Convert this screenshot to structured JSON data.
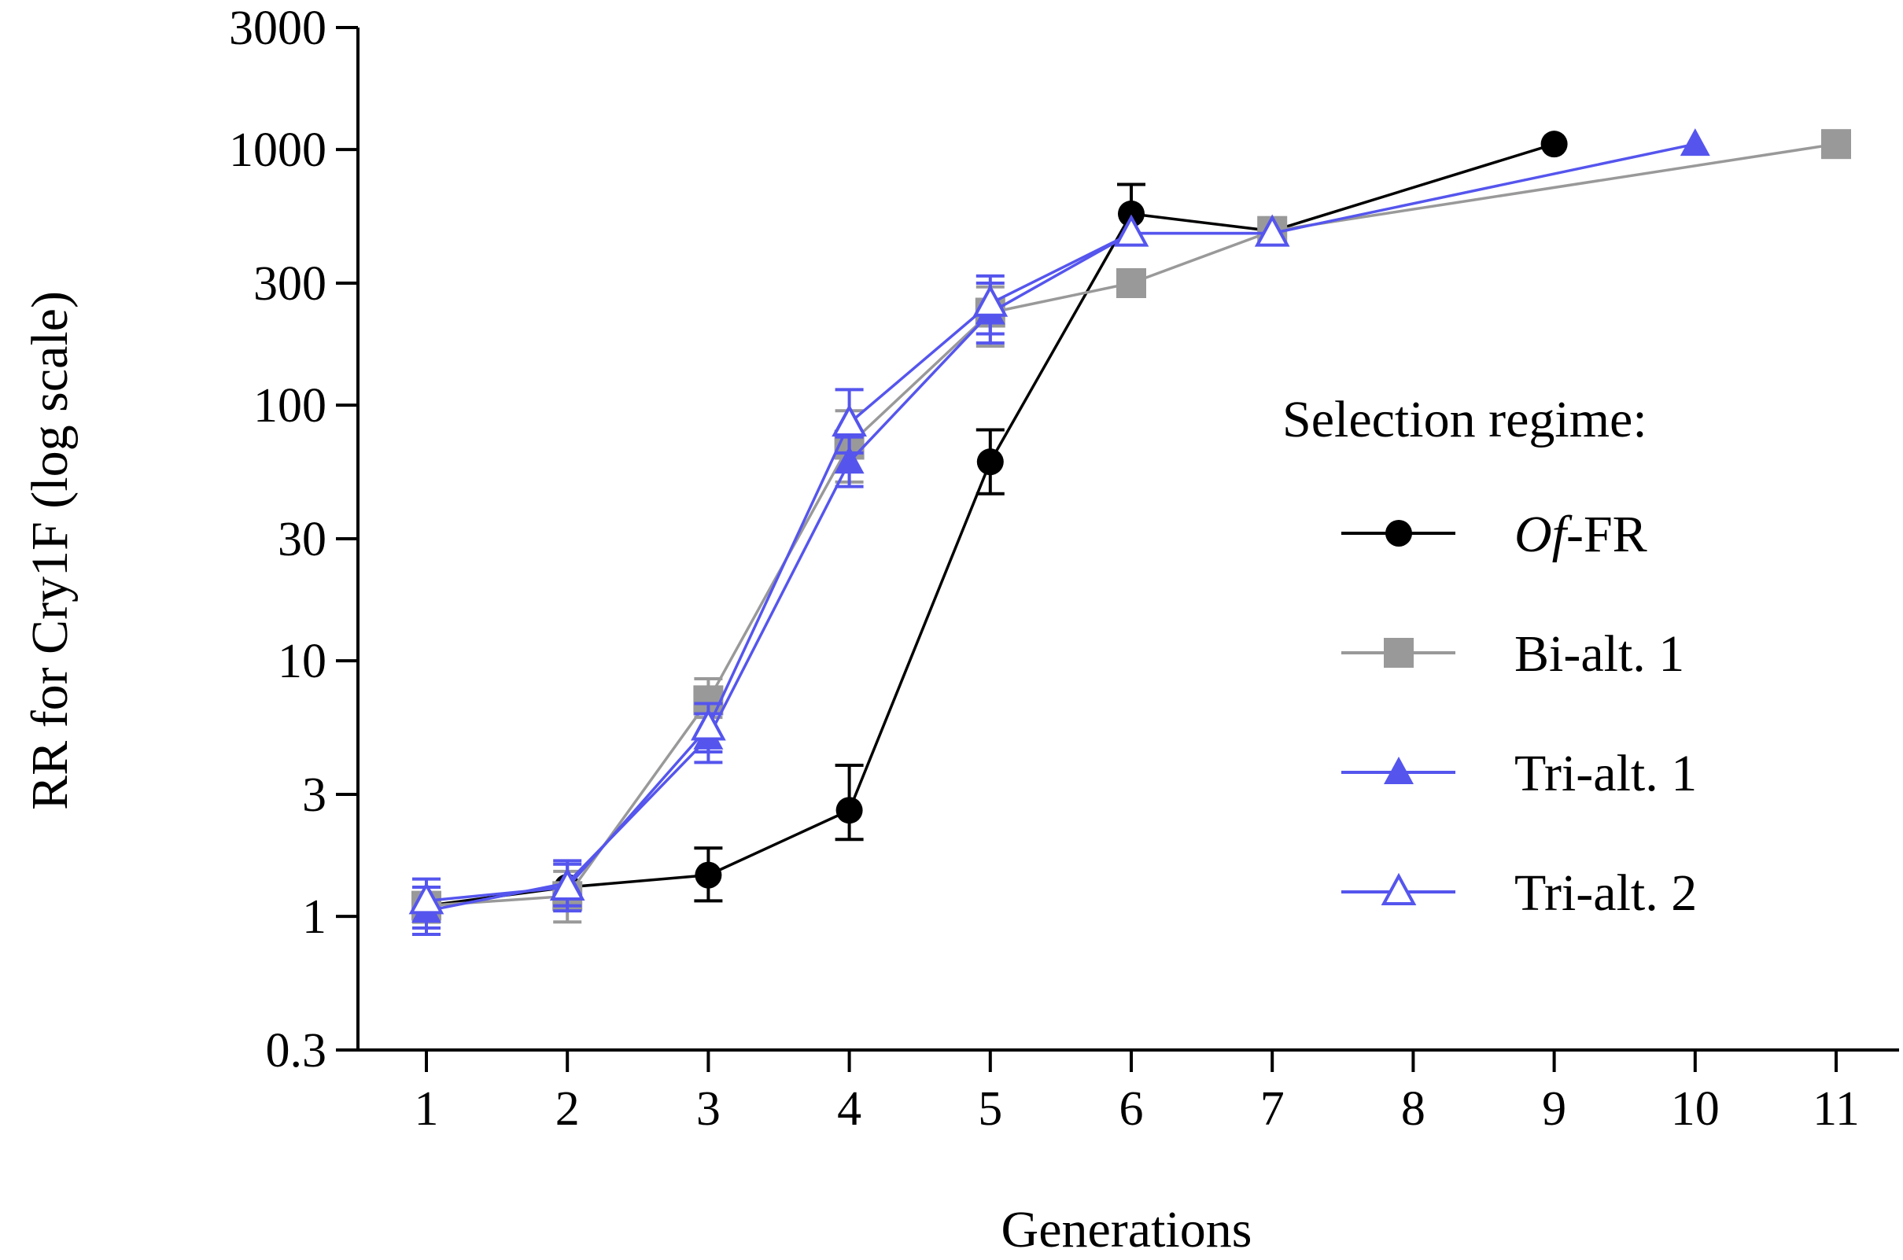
{
  "chart_data": {
    "type": "line",
    "title": "",
    "xlabel": "Generations",
    "ylabel": "RR for Cry1F (log scale)",
    "yscale": "log",
    "ylim": [
      0.3,
      3000
    ],
    "yticks": [
      0.3,
      1,
      3,
      10,
      30,
      100,
      300,
      1000,
      3000
    ],
    "ytick_labels": [
      "0.3",
      "1",
      "3",
      "10",
      "30",
      "100",
      "300",
      "1000",
      "3000"
    ],
    "x": [
      1,
      2,
      3,
      4,
      5,
      6,
      7,
      8,
      9,
      10,
      11
    ],
    "xtick_labels": [
      "1",
      "2",
      "3",
      "4",
      "5",
      "6",
      "7",
      "8",
      "9",
      "10",
      "11"
    ],
    "legend_title": "Selection regime:",
    "legend_position": "right",
    "series": [
      {
        "name_italic": "Of",
        "name_rest": "-FR",
        "color": "#000000",
        "marker": "circle-filled",
        "points": [
          {
            "x": 1,
            "y": 1.1,
            "err_lo": 0.95,
            "err_hi": 1.3
          },
          {
            "x": 2,
            "y": 1.3,
            "err_lo": 1.3,
            "err_hi": 1.3
          },
          {
            "x": 3,
            "y": 1.45,
            "err_lo": 1.15,
            "err_hi": 1.85
          },
          {
            "x": 4,
            "y": 2.6,
            "err_lo": 2.0,
            "err_hi": 3.9
          },
          {
            "x": 5,
            "y": 60,
            "err_lo": 45,
            "err_hi": 80
          },
          {
            "x": 6,
            "y": 560,
            "err_lo": 560,
            "err_hi": 730
          },
          {
            "x": 7,
            "y": 480,
            "err_lo": 480,
            "err_hi": 480
          },
          {
            "x": 9,
            "y": 1050,
            "err_lo": 1050,
            "err_hi": 1050
          }
        ]
      },
      {
        "name": "Bi-alt. 1",
        "color": "#999999",
        "marker": "square-filled",
        "points": [
          {
            "x": 1,
            "y": 1.1,
            "err_lo": 0.95,
            "err_hi": 1.2
          },
          {
            "x": 2,
            "y": 1.2,
            "err_lo": 0.95,
            "err_hi": 1.5
          },
          {
            "x": 3,
            "y": 7.0,
            "err_lo": 6.0,
            "err_hi": 8.5
          },
          {
            "x": 4,
            "y": 70,
            "err_lo": 50,
            "err_hi": 95
          },
          {
            "x": 5,
            "y": 230,
            "err_lo": 170,
            "err_hi": 290
          },
          {
            "x": 6,
            "y": 300,
            "err_lo": 300,
            "err_hi": 300
          },
          {
            "x": 7,
            "y": 480,
            "err_lo": 480,
            "err_hi": 480
          },
          {
            "x": 11,
            "y": 1050,
            "err_lo": 1050,
            "err_hi": 1050
          }
        ]
      },
      {
        "name": "Tri-alt. 1",
        "color": "#5555ee",
        "marker": "triangle-filled",
        "points": [
          {
            "x": 1,
            "y": 1.05,
            "err_lo": 0.85,
            "err_hi": 1.3
          },
          {
            "x": 2,
            "y": 1.35,
            "err_lo": 1.1,
            "err_hi": 1.65
          },
          {
            "x": 3,
            "y": 5.0,
            "err_lo": 4.0,
            "err_hi": 6.2
          },
          {
            "x": 4,
            "y": 60,
            "err_lo": 48,
            "err_hi": 75
          },
          {
            "x": 5,
            "y": 230,
            "err_lo": 175,
            "err_hi": 300
          },
          {
            "x": 6,
            "y": 470,
            "err_lo": 470,
            "err_hi": 470
          },
          {
            "x": 7,
            "y": 470,
            "err_lo": 470,
            "err_hi": 470
          },
          {
            "x": 10,
            "y": 1050,
            "err_lo": 1050,
            "err_hi": 1050
          }
        ]
      },
      {
        "name": "Tri-alt. 2",
        "color": "#5555ee",
        "marker": "triangle-open",
        "points": [
          {
            "x": 1,
            "y": 1.15,
            "err_lo": 0.9,
            "err_hi": 1.4
          },
          {
            "x": 2,
            "y": 1.3,
            "err_lo": 1.05,
            "err_hi": 1.6
          },
          {
            "x": 3,
            "y": 5.5,
            "err_lo": 4.4,
            "err_hi": 6.8
          },
          {
            "x": 4,
            "y": 85,
            "err_lo": 65,
            "err_hi": 115
          },
          {
            "x": 5,
            "y": 250,
            "err_lo": 190,
            "err_hi": 320
          },
          {
            "x": 6,
            "y": 470,
            "err_lo": 470,
            "err_hi": 470
          },
          {
            "x": 7,
            "y": 470,
            "err_lo": 470,
            "err_hi": 470
          }
        ]
      }
    ]
  }
}
